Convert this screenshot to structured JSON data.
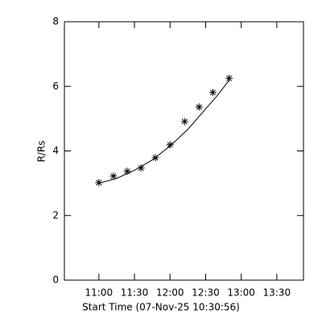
{
  "chart_data": {
    "type": "scatter",
    "xlabel": "Start Time (07-Nov-25 10:30:56)",
    "ylabel": "R/Rs",
    "x": [
      660,
      672.3,
      683.9,
      695.5,
      707.7,
      720,
      732.3,
      744.5,
      756.1,
      769.8
    ],
    "values": [
      3.02,
      3.22,
      3.37,
      3.47,
      3.79,
      4.19,
      4.91,
      5.36,
      5.81,
      6.25
    ],
    "color": "#000000",
    "fit": {
      "x": [
        660,
        675,
        690,
        705,
        720,
        735,
        750,
        760,
        770
      ],
      "values": [
        3.0,
        3.15,
        3.4,
        3.72,
        4.15,
        4.67,
        5.3,
        5.72,
        6.2
      ]
    },
    "xlim": [
      630.93,
      832.5
    ],
    "ylim": [
      0,
      8
    ],
    "xticks": [
      {
        "value": 660,
        "label": "11:00"
      },
      {
        "value": 690,
        "label": "11:30"
      },
      {
        "value": 720,
        "label": "12:00"
      },
      {
        "value": 750,
        "label": "12:30"
      },
      {
        "value": 780,
        "label": "13:00"
      },
      {
        "value": 810,
        "label": "13:30"
      }
    ],
    "yticks": [
      0,
      2,
      4,
      6,
      8
    ]
  }
}
